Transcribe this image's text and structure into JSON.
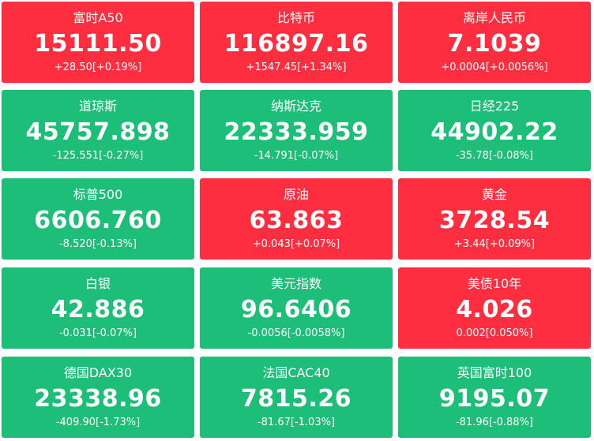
{
  "tiles": [
    {
      "name": "富时A50",
      "price": "15111.50",
      "change": "+28.50[+0.19%]",
      "trend": "up"
    },
    {
      "name": "比特币",
      "price": "116897.16",
      "change": "+1547.45[+1.34%]",
      "trend": "up"
    },
    {
      "name": "离岸人民币",
      "price": "7.1039",
      "change": "+0.0004[+0.0056%]",
      "trend": "up"
    },
    {
      "name": "道琼斯",
      "price": "45757.898",
      "change": "-125.551[-0.27%]",
      "trend": "down"
    },
    {
      "name": "纳斯达克",
      "price": "22333.959",
      "change": "-14.791[-0.07%]",
      "trend": "down"
    },
    {
      "name": "日经225",
      "price": "44902.22",
      "change": "-35.78[-0.08%]",
      "trend": "down"
    },
    {
      "name": "标普500",
      "price": "6606.760",
      "change": "-8.520[-0.13%]",
      "trend": "down"
    },
    {
      "name": "原油",
      "price": "63.863",
      "change": "+0.043[+0.07%]",
      "trend": "up"
    },
    {
      "name": "黄金",
      "price": "3728.54",
      "change": "+3.44[+0.09%]",
      "trend": "up"
    },
    {
      "name": "白银",
      "price": "42.886",
      "change": "-0.031[-0.07%]",
      "trend": "down"
    },
    {
      "name": "美元指数",
      "price": "96.6406",
      "change": "-0.0056[-0.0058%]",
      "trend": "down"
    },
    {
      "name": "美债10年",
      "price": "4.026",
      "change": "0.002[0.050%]",
      "trend": "up"
    },
    {
      "name": "德国DAX30",
      "price": "23338.96",
      "change": "-409.90[-1.73%]",
      "trend": "down"
    },
    {
      "name": "法国CAC40",
      "price": "7815.26",
      "change": "-81.67[-1.03%]",
      "trend": "down"
    },
    {
      "name": "英国富时100",
      "price": "9195.07",
      "change": "-81.96[-0.88%]",
      "trend": "down"
    }
  ],
  "colors": {
    "up": "#fd2e3f",
    "down": "#1dbf78",
    "text": "#ffffff"
  }
}
